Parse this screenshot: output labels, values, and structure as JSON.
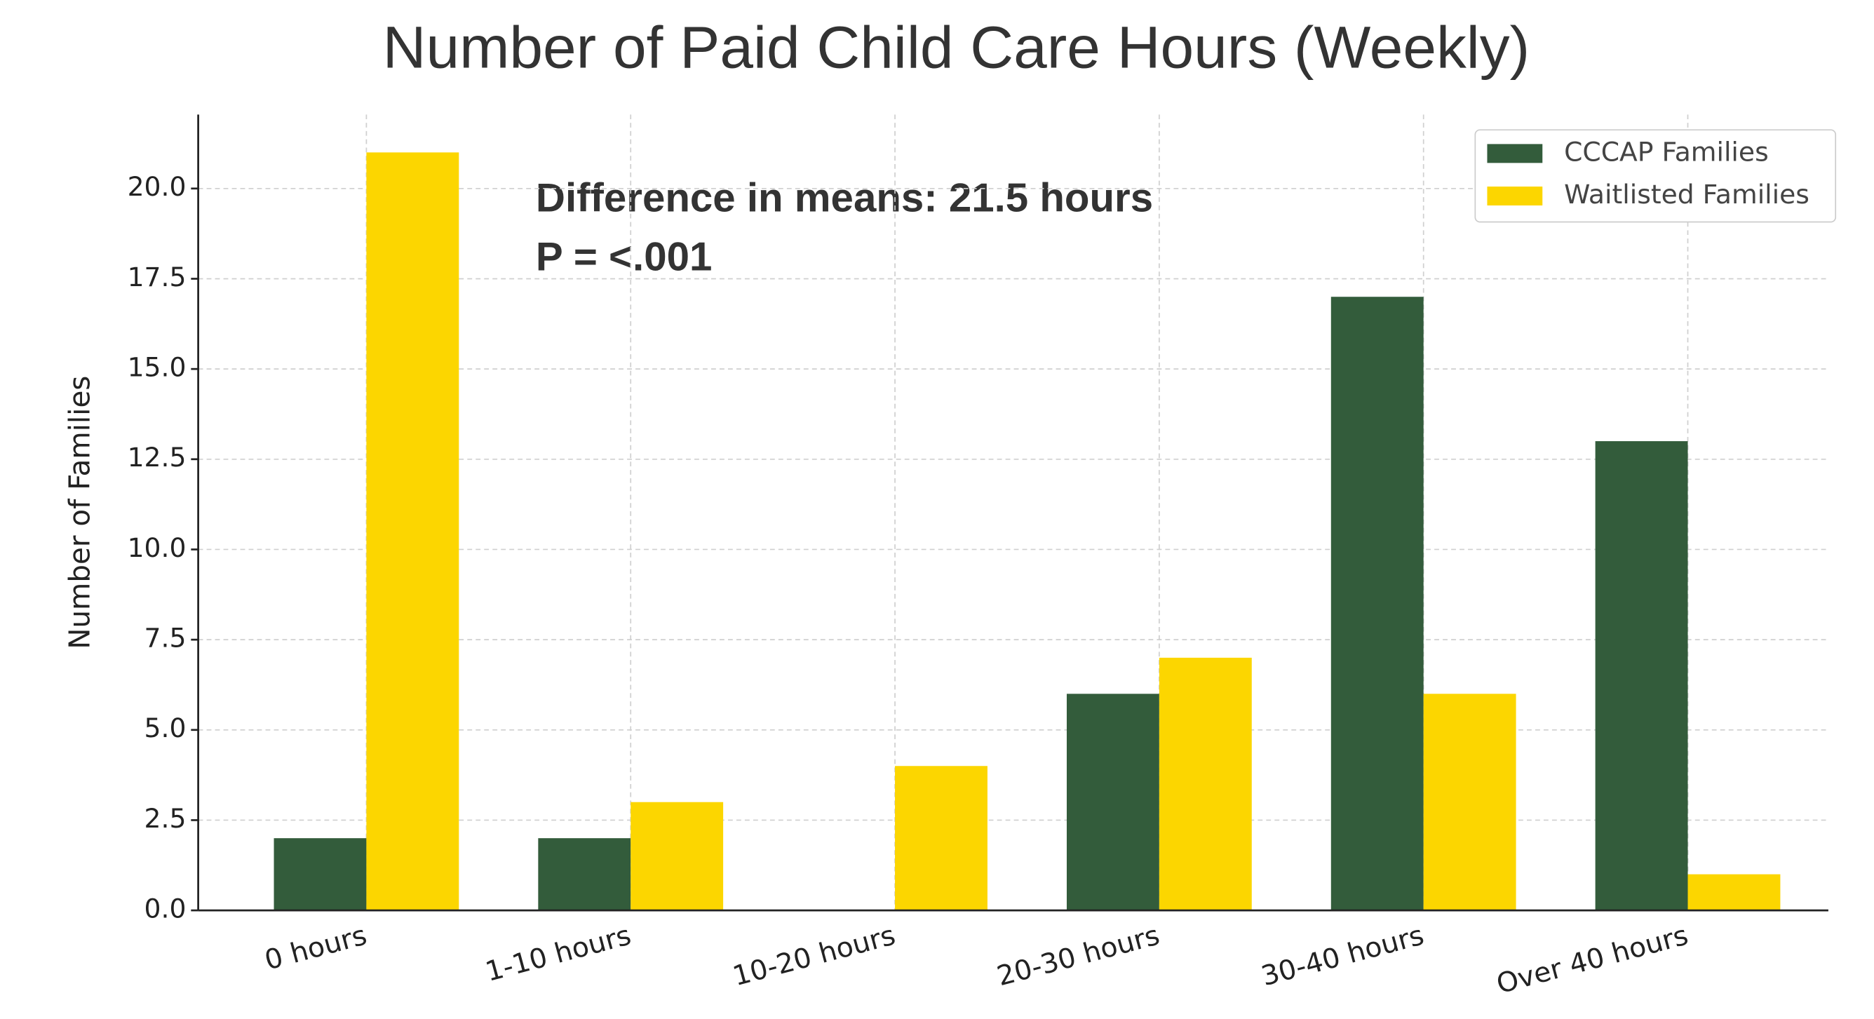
{
  "chart_data": {
    "type": "bar",
    "title": "Number of Paid Child Care Hours (Weekly)",
    "ylabel": "Number of Families",
    "annotations": [
      "Difference in means: 21.5 hours",
      "P = <.001"
    ],
    "categories": [
      "0 hours",
      "1-10 hours",
      "10-20 hours",
      "20-30 hours",
      "30-40 hours",
      "Over 40 hours"
    ],
    "series": [
      {
        "name": "CCCAP Families",
        "color": "#335c3b",
        "values": [
          2,
          2,
          0,
          6,
          17,
          13
        ]
      },
      {
        "name": "Waitlisted Families",
        "color": "#fcd600",
        "values": [
          21,
          3,
          4,
          7,
          6,
          1
        ]
      }
    ],
    "ylim": [
      0,
      22.05
    ],
    "yticks": [
      {
        "value": 0,
        "label": "0.0"
      },
      2.5,
      {
        "value": 5,
        "label": "5.0"
      },
      7.5,
      {
        "value": 10,
        "label": "10.0"
      },
      12.5,
      {
        "value": 15,
        "label": "15.0"
      },
      17.5,
      {
        "value": 20,
        "label": "20.0"
      }
    ],
    "grid": true,
    "legend": "upper right"
  }
}
